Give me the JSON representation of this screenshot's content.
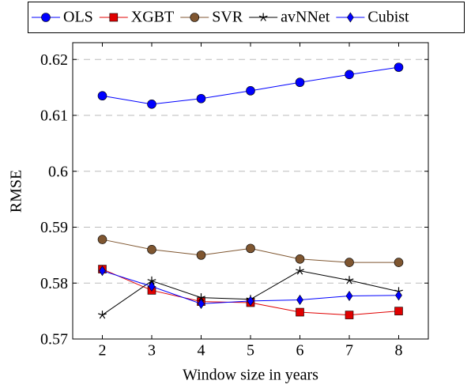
{
  "chart_data": {
    "type": "line",
    "x_label": "Window size in years",
    "y_label": "RMSE",
    "x": [
      2,
      3,
      4,
      5,
      6,
      7,
      8
    ],
    "xlim": [
      1.4,
      8.6
    ],
    "xticks": [
      2,
      3,
      4,
      5,
      6,
      7,
      8
    ],
    "ylim": [
      0.57,
      0.623
    ],
    "yticks": [
      0.57,
      0.58,
      0.59,
      0.6,
      0.61,
      0.62
    ],
    "grid": true,
    "legend": "top",
    "series": [
      {
        "name": "OLS",
        "color": "#0000ff",
        "marker": "circle",
        "values": [
          0.6135,
          0.612,
          0.613,
          0.6144,
          0.6159,
          0.6173,
          0.6186
        ]
      },
      {
        "name": "XGBT",
        "color": "#e00000",
        "marker": "square",
        "values": [
          0.5825,
          0.5787,
          0.5767,
          0.5765,
          0.5748,
          0.5743,
          0.575
        ]
      },
      {
        "name": "SVR",
        "color": "#7f5630",
        "marker": "circle",
        "values": [
          0.5878,
          0.586,
          0.585,
          0.5862,
          0.5843,
          0.5837,
          0.5837
        ]
      },
      {
        "name": "avNNet",
        "color": "#000000",
        "marker": "star",
        "values": [
          0.5743,
          0.5804,
          0.5774,
          0.5771,
          0.5822,
          0.5805,
          0.5785
        ]
      },
      {
        "name": "Cubist",
        "color": "#0000ff",
        "marker": "diamond",
        "values": [
          0.5822,
          0.5794,
          0.5763,
          0.5768,
          0.577,
          0.5777,
          0.5778
        ]
      }
    ]
  }
}
